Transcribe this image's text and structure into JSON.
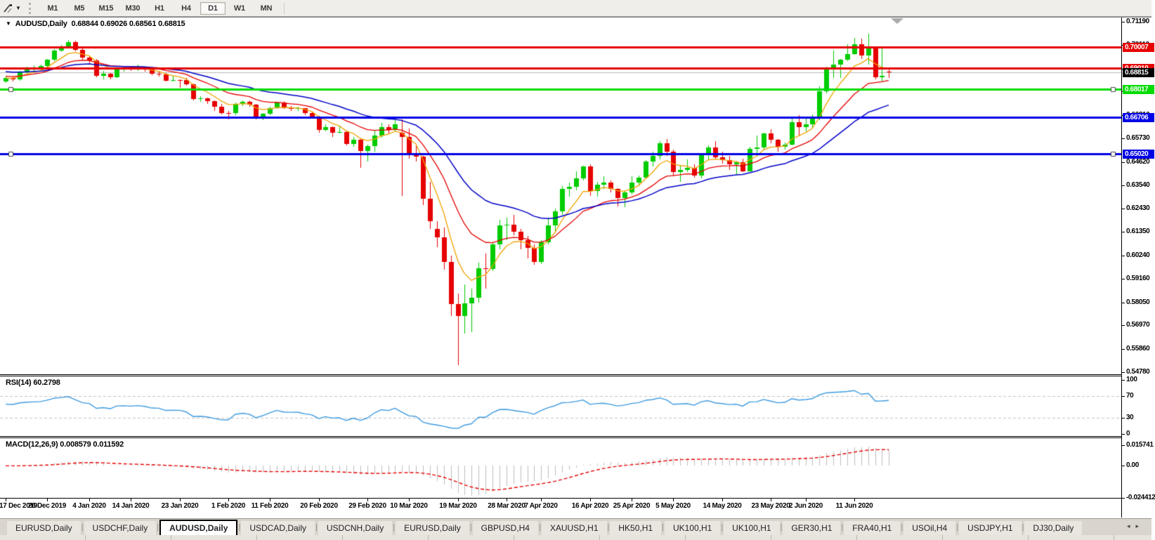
{
  "toolbar": {
    "tool_icon": "draw-tool-icon",
    "dropdown_caret": "▼",
    "timeframes": [
      "M1",
      "M5",
      "M15",
      "M30",
      "H1",
      "H4",
      "D1",
      "W1",
      "MN"
    ],
    "active_timeframe": "D1"
  },
  "header": {
    "collapse_icon": "▼",
    "symbol": "AUDUSD,Daily",
    "ohlc": "0.68844 0.69026 0.68561 0.68815"
  },
  "chart_data": {
    "type": "candlestick",
    "symbol": "AUDUSD",
    "period": "Daily",
    "ohlc_display": {
      "open": "0.68844",
      "high": "0.69026",
      "low": "0.68561",
      "close": "0.68815"
    },
    "colors": {
      "bull": "#00CC00",
      "bear": "#E60000",
      "wick_bull": "#00CC00",
      "wick_bear": "#E60000",
      "ma_fast": "#EFA400",
      "ma_mid": "#E60000",
      "ma_slow": "#0000C8",
      "line_red": "#E60000",
      "line_green": "#00DC00",
      "line_blue": "#0000E6",
      "current_price_line": "#B8B8B8",
      "rsi_line": "#3E9BE0",
      "macd_histogram": "#BEBEBE",
      "macd_signal": "#E60000",
      "shift_marker": "#A9A9A9"
    },
    "y_axis": {
      "max": 0.7119,
      "min": 0.5478,
      "ticks": [
        {
          "label": "0.71190",
          "value": 0.7119
        },
        {
          "label": "0.70110",
          "value": 0.7011
        },
        {
          "label": "0.69000",
          "value": 0.69
        },
        {
          "label": "0.67920",
          "value": 0.6792
        },
        {
          "label": "0.66810",
          "value": 0.6681
        },
        {
          "label": "0.65730",
          "value": 0.6573
        },
        {
          "label": "0.64620",
          "value": 0.6462
        },
        {
          "label": "0.63540",
          "value": 0.6354
        },
        {
          "label": "0.62430",
          "value": 0.6243
        },
        {
          "label": "0.61350",
          "value": 0.6135
        },
        {
          "label": "0.60240",
          "value": 0.6024
        },
        {
          "label": "0.59160",
          "value": 0.5916
        },
        {
          "label": "0.58050",
          "value": 0.5805
        },
        {
          "label": "0.56970",
          "value": 0.5697
        },
        {
          "label": "0.55860",
          "value": 0.5586
        },
        {
          "label": "0.54780",
          "value": 0.5478
        }
      ]
    },
    "x_tick_labels": [
      {
        "label": "17 Dec 2019",
        "bar": 0
      },
      {
        "label": "26 Dec 2019",
        "bar": 6
      },
      {
        "label": "4 Jan 2020",
        "bar": 12
      },
      {
        "label": "14 Jan 2020",
        "bar": 18
      },
      {
        "label": "23 Jan 2020",
        "bar": 25
      },
      {
        "label": "1 Feb 2020",
        "bar": 32
      },
      {
        "label": "11 Feb 2020",
        "bar": 38
      },
      {
        "label": "20 Feb 2020",
        "bar": 45
      },
      {
        "label": "29 Feb 2020",
        "bar": 52
      },
      {
        "label": "10 Mar 2020",
        "bar": 58
      },
      {
        "label": "19 Mar 2020",
        "bar": 65
      },
      {
        "label": "28 Mar 2020",
        "bar": 72
      },
      {
        "label": "7 Apr 2020",
        "bar": 77
      },
      {
        "label": "16 Apr 2020",
        "bar": 84
      },
      {
        "label": "25 Apr 2020",
        "bar": 90
      },
      {
        "label": "5 May 2020",
        "bar": 96
      },
      {
        "label": "14 May 2020",
        "bar": 103
      },
      {
        "label": "23 May 2020",
        "bar": 110
      },
      {
        "label": "2 Jun 2020",
        "bar": 115
      },
      {
        "label": "11 Jun 2020",
        "bar": 122
      }
    ],
    "candles": [
      [
        0.684,
        0.6866,
        0.6832,
        0.6855
      ],
      [
        0.6855,
        0.6862,
        0.6841,
        0.685
      ],
      [
        0.685,
        0.689,
        0.6844,
        0.6885
      ],
      [
        0.6885,
        0.6909,
        0.6876,
        0.69
      ],
      [
        0.69,
        0.6915,
        0.689,
        0.6905
      ],
      [
        0.6905,
        0.692,
        0.6898,
        0.6912
      ],
      [
        0.6912,
        0.6946,
        0.6905,
        0.694
      ],
      [
        0.694,
        0.699,
        0.6935,
        0.6985
      ],
      [
        0.6985,
        0.701,
        0.6978,
        0.7
      ],
      [
        0.7,
        0.7032,
        0.6995,
        0.7023
      ],
      [
        0.7023,
        0.703,
        0.698,
        0.6988
      ],
      [
        0.6988,
        0.6995,
        0.694,
        0.695
      ],
      [
        0.695,
        0.696,
        0.6925,
        0.6938
      ],
      [
        0.6938,
        0.6945,
        0.686,
        0.6865
      ],
      [
        0.6865,
        0.689,
        0.685,
        0.6875
      ],
      [
        0.6875,
        0.688,
        0.6848,
        0.6858
      ],
      [
        0.6858,
        0.6905,
        0.6855,
        0.69
      ],
      [
        0.69,
        0.6912,
        0.6885,
        0.6902
      ],
      [
        0.6902,
        0.691,
        0.689,
        0.6898
      ],
      [
        0.6898,
        0.692,
        0.689,
        0.6905
      ],
      [
        0.6905,
        0.691,
        0.6885,
        0.6895
      ],
      [
        0.6895,
        0.69,
        0.687,
        0.6875
      ],
      [
        0.6875,
        0.6885,
        0.6863,
        0.6872
      ],
      [
        0.6872,
        0.6878,
        0.6838,
        0.6844
      ],
      [
        0.6844,
        0.6865,
        0.684,
        0.6846
      ],
      [
        0.6846,
        0.685,
        0.681,
        0.6845
      ],
      [
        0.6845,
        0.6855,
        0.682,
        0.6827
      ],
      [
        0.6827,
        0.683,
        0.675,
        0.6757
      ],
      [
        0.6757,
        0.6772,
        0.6744,
        0.676
      ],
      [
        0.676,
        0.6765,
        0.6735,
        0.6748
      ],
      [
        0.6748,
        0.675,
        0.67,
        0.672
      ],
      [
        0.672,
        0.6735,
        0.6685,
        0.6693
      ],
      [
        0.6693,
        0.67,
        0.6662,
        0.669
      ],
      [
        0.669,
        0.674,
        0.6682,
        0.6735
      ],
      [
        0.6735,
        0.675,
        0.6725,
        0.6744
      ],
      [
        0.6744,
        0.675,
        0.6722,
        0.673
      ],
      [
        0.673,
        0.6735,
        0.6662,
        0.667
      ],
      [
        0.667,
        0.6692,
        0.6658,
        0.6688
      ],
      [
        0.6688,
        0.672,
        0.668,
        0.6715
      ],
      [
        0.6715,
        0.6745,
        0.671,
        0.674
      ],
      [
        0.674,
        0.6748,
        0.671,
        0.6716
      ],
      [
        0.6716,
        0.6725,
        0.67,
        0.6712
      ],
      [
        0.6712,
        0.672,
        0.67,
        0.6713
      ],
      [
        0.6713,
        0.6716,
        0.668,
        0.669
      ],
      [
        0.669,
        0.6695,
        0.6665,
        0.6675
      ],
      [
        0.6675,
        0.6678,
        0.66,
        0.6611
      ],
      [
        0.6611,
        0.664,
        0.6605,
        0.6627
      ],
      [
        0.6627,
        0.663,
        0.658,
        0.66
      ],
      [
        0.66,
        0.663,
        0.6595,
        0.6602
      ],
      [
        0.6602,
        0.661,
        0.654,
        0.6547
      ],
      [
        0.6547,
        0.658,
        0.6535,
        0.6566
      ],
      [
        0.6566,
        0.657,
        0.6434,
        0.6515
      ],
      [
        0.6515,
        0.6545,
        0.6465,
        0.6536
      ],
      [
        0.6536,
        0.661,
        0.651,
        0.6587
      ],
      [
        0.6587,
        0.6645,
        0.6576,
        0.6625
      ],
      [
        0.6625,
        0.664,
        0.6595,
        0.6612
      ],
      [
        0.6612,
        0.667,
        0.6605,
        0.664
      ],
      [
        0.66,
        0.6662,
        0.6305,
        0.658
      ],
      [
        0.658,
        0.662,
        0.6477,
        0.65
      ],
      [
        0.65,
        0.6538,
        0.6465,
        0.6487
      ],
      [
        0.6487,
        0.649,
        0.626,
        0.629
      ],
      [
        0.629,
        0.637,
        0.615,
        0.6185
      ],
      [
        0.615,
        0.6185,
        0.6065,
        0.611
      ],
      [
        0.611,
        0.6157,
        0.5958,
        0.5995
      ],
      [
        0.5995,
        0.6025,
        0.574,
        0.5797
      ],
      [
        0.5797,
        0.5845,
        0.551,
        0.574
      ],
      [
        0.574,
        0.589,
        0.566,
        0.58
      ],
      [
        0.58,
        0.587,
        0.5665,
        0.5825
      ],
      [
        0.5825,
        0.599,
        0.5805,
        0.5965
      ],
      [
        0.5965,
        0.6035,
        0.587,
        0.596
      ],
      [
        0.596,
        0.6085,
        0.595,
        0.6075
      ],
      [
        0.6075,
        0.619,
        0.6055,
        0.6165
      ],
      [
        0.6165,
        0.62,
        0.6095,
        0.617
      ],
      [
        0.617,
        0.6215,
        0.612,
        0.6135
      ],
      [
        0.6135,
        0.615,
        0.6055,
        0.6095
      ],
      [
        0.6095,
        0.6115,
        0.601,
        0.606
      ],
      [
        0.606,
        0.6075,
        0.598,
        0.5995
      ],
      [
        0.5995,
        0.6095,
        0.5985,
        0.6085
      ],
      [
        0.6085,
        0.62,
        0.6075,
        0.6165
      ],
      [
        0.6165,
        0.6245,
        0.6135,
        0.623
      ],
      [
        0.623,
        0.635,
        0.6215,
        0.6335
      ],
      [
        0.6335,
        0.6365,
        0.63,
        0.6345
      ],
      [
        0.6345,
        0.642,
        0.633,
        0.6385
      ],
      [
        0.6385,
        0.6445,
        0.6375,
        0.644
      ],
      [
        0.644,
        0.645,
        0.6305,
        0.6325
      ],
      [
        0.6325,
        0.637,
        0.63,
        0.6355
      ],
      [
        0.6355,
        0.6395,
        0.6335,
        0.6365
      ],
      [
        0.6365,
        0.6375,
        0.632,
        0.6335
      ],
      [
        0.6335,
        0.634,
        0.6255,
        0.6295
      ],
      [
        0.6295,
        0.633,
        0.625,
        0.632
      ],
      [
        0.632,
        0.6395,
        0.631,
        0.6365
      ],
      [
        0.6365,
        0.64,
        0.635,
        0.639
      ],
      [
        0.639,
        0.647,
        0.6385,
        0.6465
      ],
      [
        0.6465,
        0.651,
        0.644,
        0.649
      ],
      [
        0.649,
        0.656,
        0.6475,
        0.655
      ],
      [
        0.655,
        0.657,
        0.649,
        0.651
      ],
      [
        0.651,
        0.652,
        0.64,
        0.6415
      ],
      [
        0.6415,
        0.6445,
        0.637,
        0.6425
      ],
      [
        0.6425,
        0.6475,
        0.6415,
        0.6435
      ],
      [
        0.6435,
        0.645,
        0.639,
        0.64
      ],
      [
        0.64,
        0.65,
        0.6385,
        0.6495
      ],
      [
        0.6495,
        0.654,
        0.6475,
        0.653
      ],
      [
        0.653,
        0.656,
        0.6475,
        0.6485
      ],
      [
        0.6485,
        0.651,
        0.6455,
        0.647
      ],
      [
        0.647,
        0.649,
        0.6425,
        0.645
      ],
      [
        0.645,
        0.6465,
        0.6403,
        0.646
      ],
      [
        0.646,
        0.6478,
        0.6415,
        0.642
      ],
      [
        0.642,
        0.6535,
        0.6418,
        0.6525
      ],
      [
        0.6525,
        0.6585,
        0.6505,
        0.653
      ],
      [
        0.653,
        0.66,
        0.652,
        0.6595
      ],
      [
        0.6595,
        0.6615,
        0.655,
        0.6565
      ],
      [
        0.6565,
        0.657,
        0.651,
        0.6535
      ],
      [
        0.6535,
        0.6555,
        0.652,
        0.6545
      ],
      [
        0.6545,
        0.6665,
        0.654,
        0.665
      ],
      [
        0.665,
        0.668,
        0.6585,
        0.6625
      ],
      [
        0.6625,
        0.6665,
        0.6605,
        0.664
      ],
      [
        0.664,
        0.6685,
        0.662,
        0.6665
      ],
      [
        0.6665,
        0.6815,
        0.666,
        0.6795
      ],
      [
        0.6795,
        0.691,
        0.6785,
        0.6895
      ],
      [
        0.6895,
        0.6985,
        0.6855,
        0.692
      ],
      [
        0.692,
        0.6945,
        0.6855,
        0.694
      ],
      [
        0.694,
        0.7015,
        0.6935,
        0.6968
      ],
      [
        0.6968,
        0.7043,
        0.6965,
        0.7015
      ],
      [
        0.7015,
        0.704,
        0.6945,
        0.696
      ],
      [
        0.696,
        0.7064,
        0.692,
        0.7
      ],
      [
        0.7,
        0.7005,
        0.685,
        0.686
      ],
      [
        0.686,
        0.6998,
        0.6835,
        0.6865
      ],
      [
        0.6884,
        0.6903,
        0.6856,
        0.6882
      ]
    ],
    "moving_averages": [
      {
        "name": "fast",
        "period": 6,
        "method": "ema",
        "seed": 0.6855,
        "color_key": "ma_fast",
        "width": 1.3
      },
      {
        "name": "mid",
        "period": 14,
        "method": "ema",
        "seed": 0.6865,
        "color_key": "ma_mid",
        "width": 1.3
      },
      {
        "name": "slow",
        "period": 28,
        "method": "ema",
        "seed": 0.6888,
        "color_key": "ma_slow",
        "width": 1.5
      }
    ],
    "horizontal_lines": [
      {
        "label": "0.70007",
        "price": 0.70007,
        "color_key": "line_red",
        "width": 3,
        "handles": false
      },
      {
        "label": "0.69010",
        "price": 0.6901,
        "color_key": "line_red",
        "width": 3,
        "handles": false
      },
      {
        "label": "0.68017",
        "price": 0.68017,
        "color_key": "line_green",
        "width": 3,
        "handles": true
      },
      {
        "label": "0.66706",
        "price": 0.66706,
        "color_key": "line_blue",
        "width": 3,
        "handles": false
      },
      {
        "label": "0.65020",
        "price": 0.6502,
        "color_key": "line_blue",
        "width": 3,
        "handles": true
      }
    ],
    "current_price": {
      "label": "0.68815",
      "value": 0.68815,
      "badge_bg": "#000000"
    },
    "indicators": {
      "rsi": {
        "label": "RSI(14)",
        "period": 14,
        "value_display": "60.2798",
        "levels": [
          70,
          30
        ],
        "scale_max": 100,
        "scale_min": 0,
        "axis_labels": [
          {
            "label": "100",
            "value": 100
          },
          {
            "label": "70",
            "value": 70
          },
          {
            "label": "30",
            "value": 30
          },
          {
            "label": "0",
            "value": 0
          }
        ]
      },
      "macd": {
        "label": "MACD(12,26,9)",
        "fast": 12,
        "slow": 26,
        "signal": 9,
        "main_value": "0.008579",
        "signal_value": "0.011592",
        "scale_max": 0.015741,
        "scale_min": -0.024412,
        "axis_labels": [
          {
            "label": "0.015741",
            "value": 0.015741
          },
          {
            "label": "0.00",
            "value": 0
          },
          {
            "label": "-0.024412",
            "value": -0.024412
          }
        ]
      }
    },
    "shift_marker": true
  },
  "tabs": {
    "items": [
      "EURUSD,Daily",
      "USDCHF,Daily",
      "AUDUSD,Daily",
      "USDCAD,Daily",
      "USDCNH,Daily",
      "EURUSD,Daily",
      "GBPUSD,H4",
      "XAUUSD,H1",
      "HK50,H1",
      "UK100,H1",
      "UK100,H1",
      "GER30,H1",
      "FRA40,H1",
      "USOil,H4",
      "USDJPY,H1",
      "DJ30,Daily"
    ],
    "active_index": 2,
    "scroll_left": "◂",
    "scroll_right": "▸"
  }
}
